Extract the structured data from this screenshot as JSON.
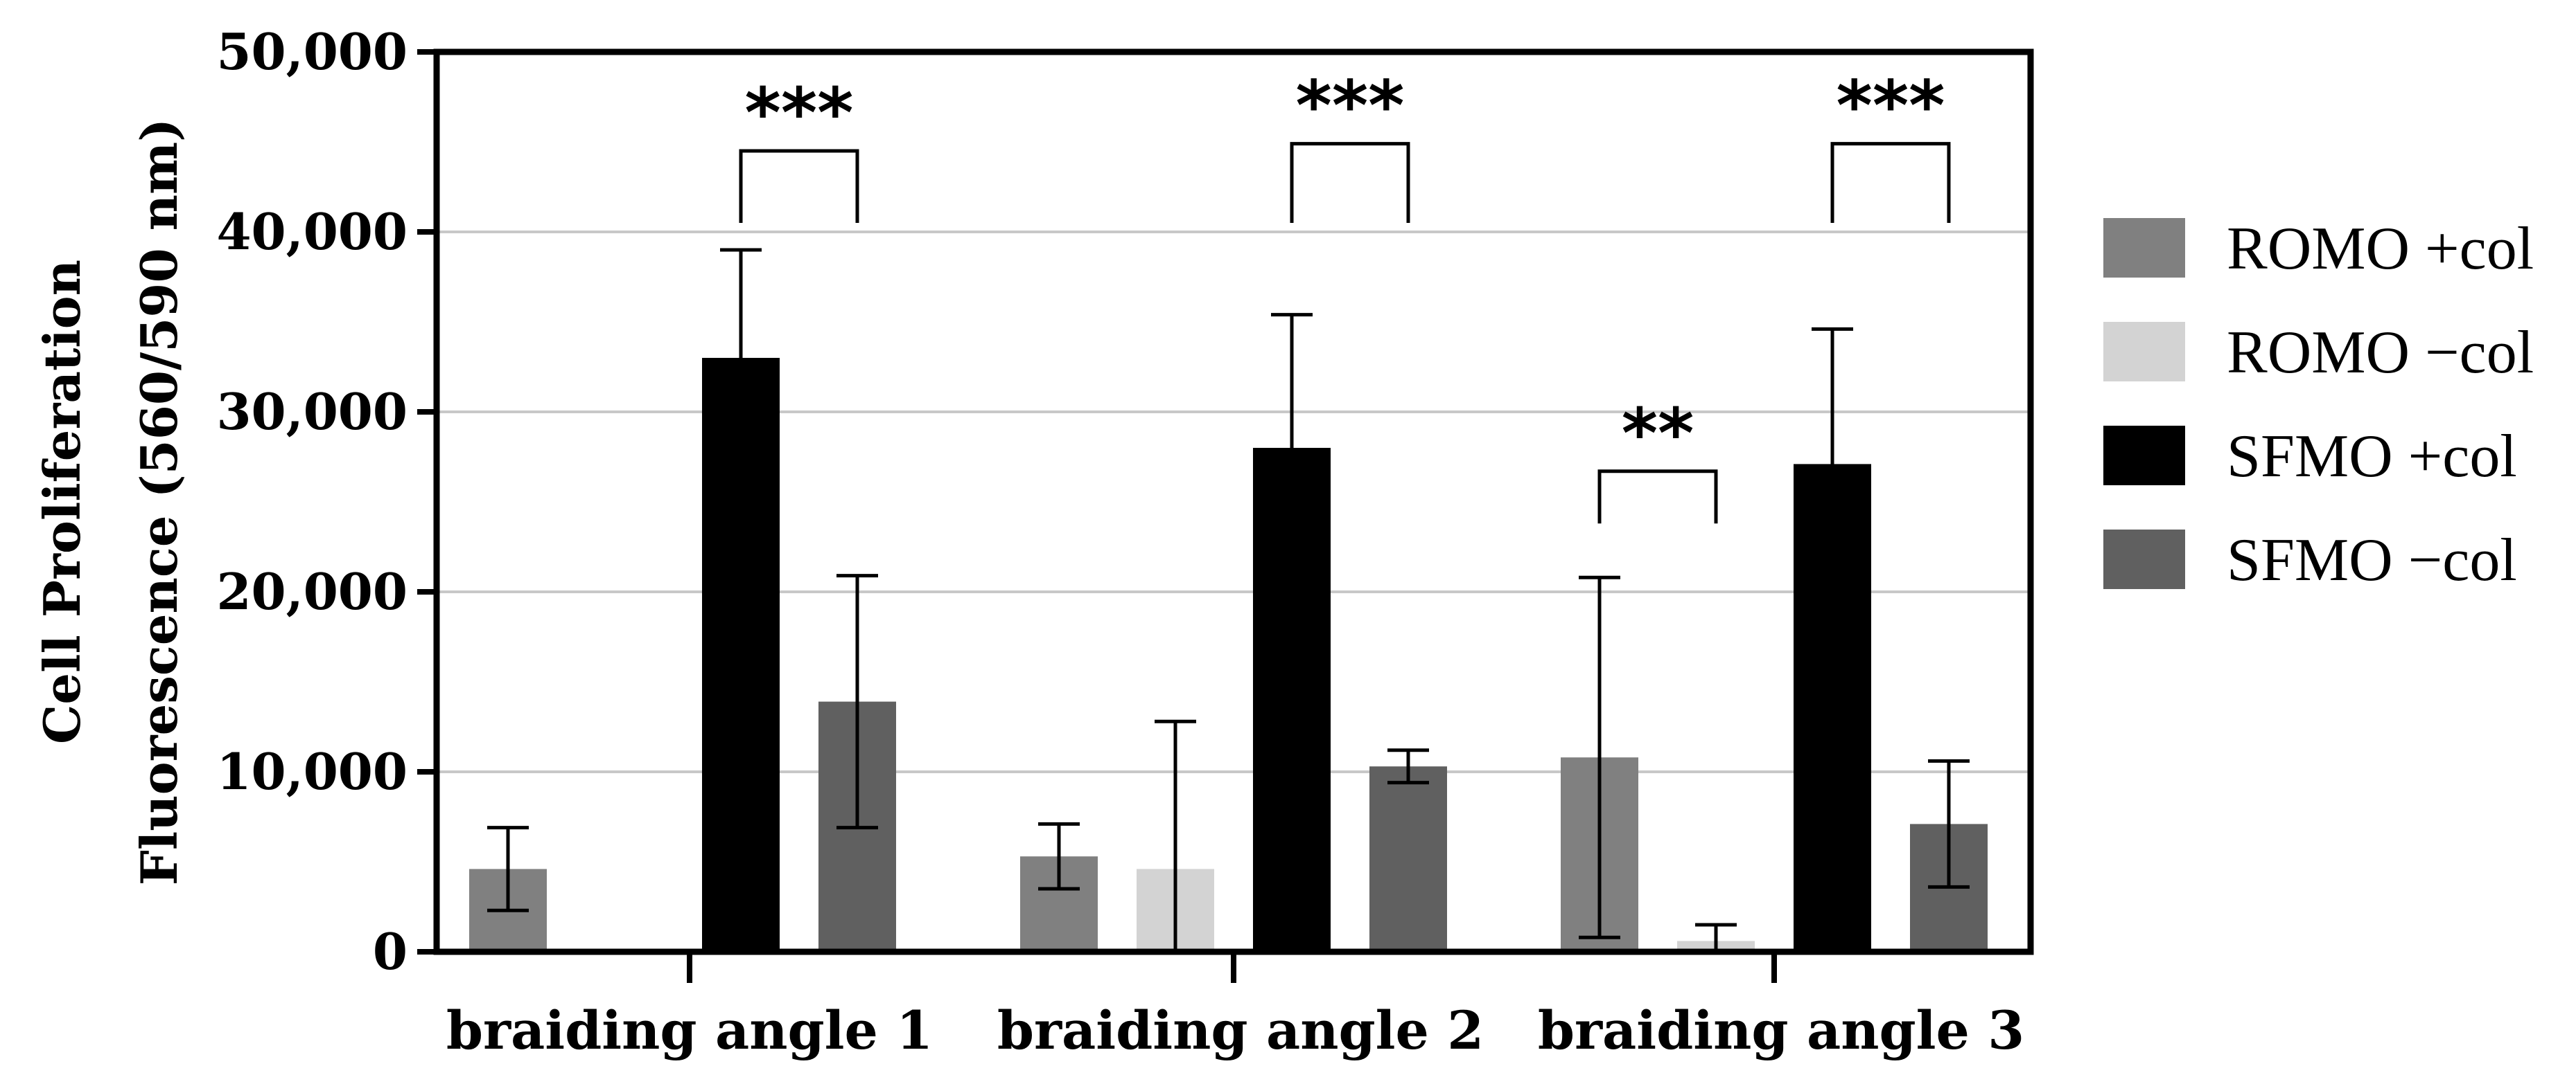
{
  "chart_data": {
    "type": "bar",
    "title": "",
    "xlabel": "",
    "ylabel_lines": [
      "Cell Proliferation",
      "Fluorescence (560/590 nm)"
    ],
    "ylim": [
      0,
      50000
    ],
    "yticks": [
      0,
      10000,
      20000,
      30000,
      40000,
      50000
    ],
    "ytick_labels": [
      "0",
      "10,000",
      "20,000",
      "30,000",
      "40,000",
      "50,000"
    ],
    "grid": true,
    "legend_position": "right",
    "categories": [
      "braiding angle 1",
      "braiding angle 2",
      "braiding angle 3"
    ],
    "series": [
      {
        "name": "ROMO +col",
        "color": "#808080",
        "values": [
          4600,
          5300,
          10800
        ],
        "errors": [
          2300,
          1800,
          10000
        ]
      },
      {
        "name": "ROMO −col",
        "color": "#d3d3d3",
        "values": [
          0,
          4600,
          600
        ],
        "errors": [
          0,
          8200,
          900
        ]
      },
      {
        "name": "SFMO +col",
        "color": "#000000",
        "values": [
          33000,
          28000,
          27100
        ],
        "errors": [
          6000,
          7400,
          7500
        ]
      },
      {
        "name": "SFMO −col",
        "color": "#606060",
        "values": [
          13900,
          10300,
          7100
        ],
        "errors": [
          7000,
          900,
          3500
        ]
      }
    ],
    "significance": [
      {
        "category": 0,
        "from_series": 2,
        "to_series": 3,
        "label": "***",
        "bracket_value": 44500,
        "bracket_bottom": 40500
      },
      {
        "category": 1,
        "from_series": 2,
        "to_series": 3,
        "label": "***",
        "bracket_value": 44900,
        "bracket_bottom": 40500
      },
      {
        "category": 2,
        "from_series": 0,
        "to_series": 1,
        "label": "**",
        "bracket_value": 26700,
        "bracket_bottom": 23800
      },
      {
        "category": 2,
        "from_series": 2,
        "to_series": 3,
        "label": "***",
        "bracket_value": 44900,
        "bracket_bottom": 40500
      }
    ]
  }
}
